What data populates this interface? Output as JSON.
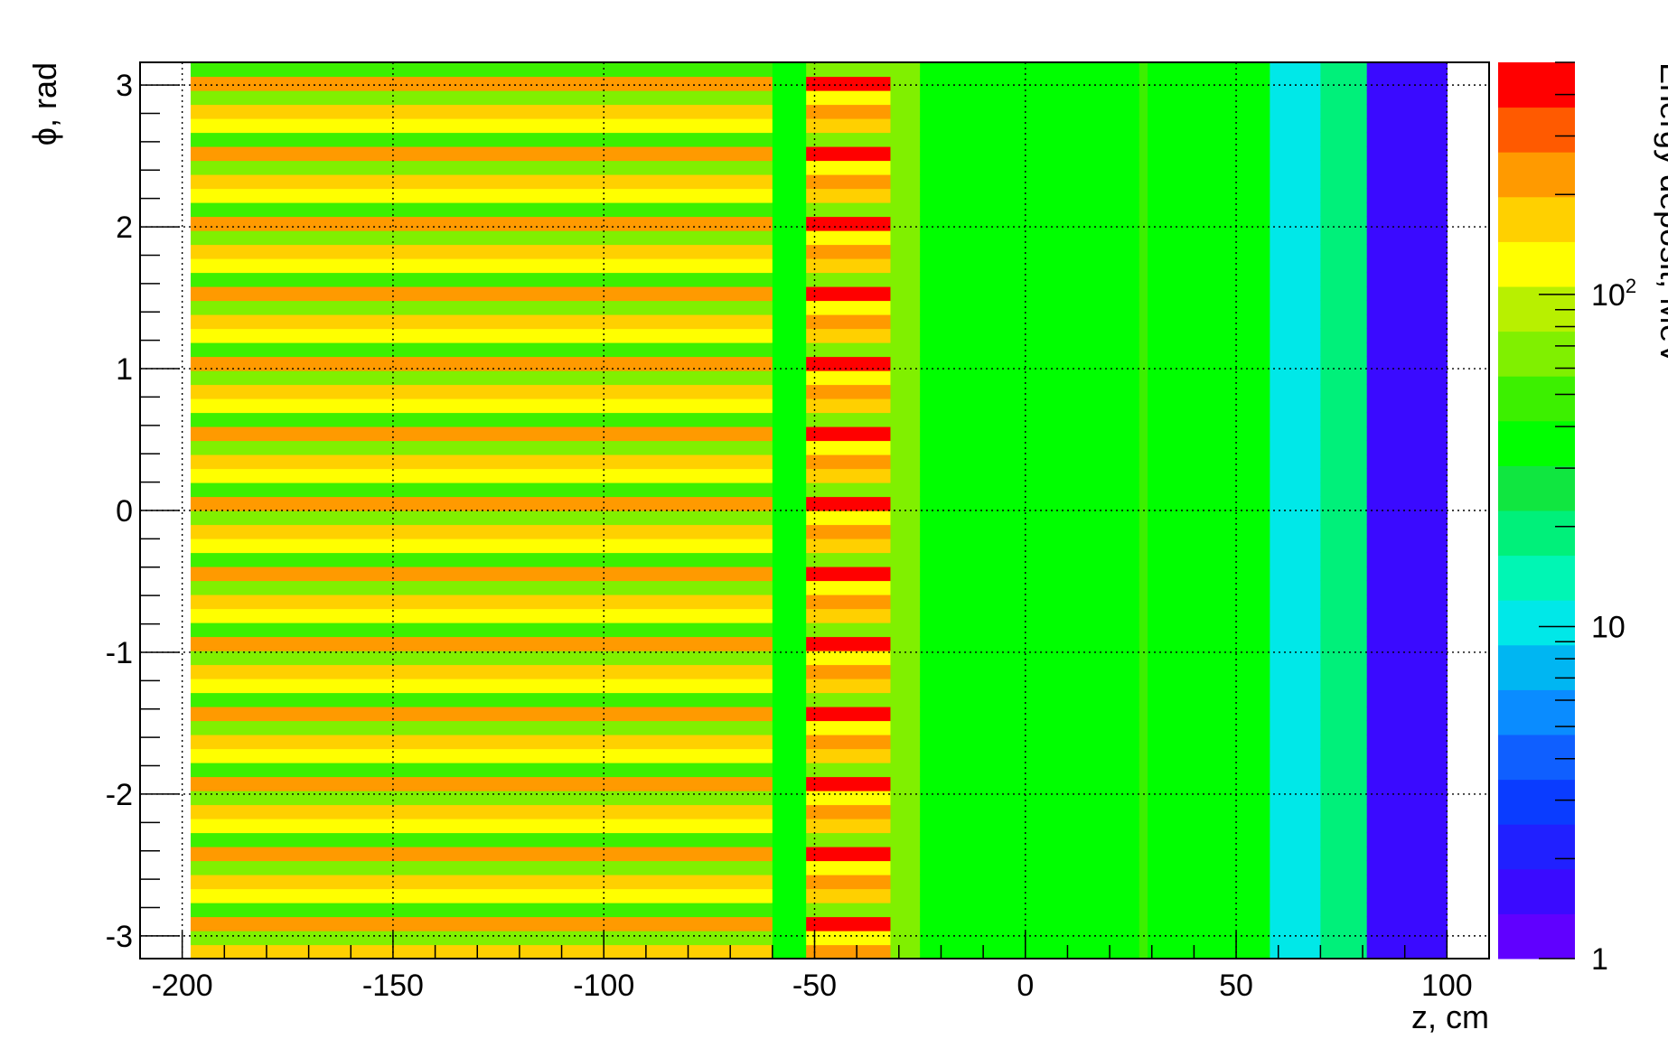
{
  "chart_data": {
    "type": "heatmap",
    "title": "",
    "xlabel": "z, cm",
    "ylabel": "ϕ, rad",
    "zlabel": "Energy deposit, MeV",
    "xlim": [
      -210,
      110
    ],
    "ylim": [
      -3.16,
      3.16
    ],
    "x_ticks": [
      -200,
      -150,
      -100,
      -50,
      0,
      50,
      100
    ],
    "y_ticks": [
      -3,
      -2,
      -1,
      0,
      1,
      2,
      3
    ],
    "z_scale": "log",
    "zlim": [
      1,
      500
    ],
    "z_ticks": [
      {
        "label": "1",
        "value": 1
      },
      {
        "label": "10",
        "value": 10
      },
      {
        "label": "10",
        "sup": "2",
        "value": 100
      }
    ],
    "grid": true,
    "phi_bins": 64,
    "z_segments": [
      {
        "z_from": -198,
        "z_to": -60,
        "pattern": "stripes",
        "levels": [
          150,
          60,
          250,
          45,
          120
        ]
      },
      {
        "z_from": -60,
        "z_to": -52,
        "value": 40
      },
      {
        "z_from": -52,
        "z_to": -32,
        "pattern": "stripes",
        "levels": [
          250,
          110,
          400,
          70,
          160
        ]
      },
      {
        "z_from": -32,
        "z_to": -25,
        "value": 65
      },
      {
        "z_from": -25,
        "z_to": 27,
        "value": 38
      },
      {
        "z_from": 27,
        "z_to": 29,
        "value": 55
      },
      {
        "z_from": 29,
        "z_to": 58,
        "value": 35
      },
      {
        "z_from": 58,
        "z_to": 70,
        "value": 10
      },
      {
        "z_from": 70,
        "z_to": 81,
        "value": 20
      },
      {
        "z_from": 81,
        "z_to": 100,
        "value": 1.6
      }
    ]
  }
}
